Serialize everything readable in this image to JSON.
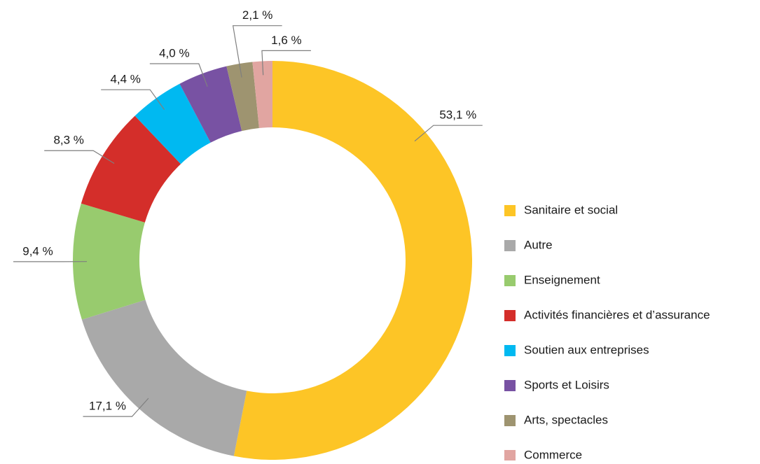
{
  "chart_data": {
    "type": "donut",
    "categories": [
      "Sanitaire et social",
      "Autre",
      "Enseignement",
      "Activités financières et d’assurance",
      "Soutien aux entreprises",
      "Sports et Loisirs",
      "Arts, spectacles",
      "Commerce"
    ],
    "values": [
      53.1,
      17.1,
      9.4,
      8.3,
      4.4,
      4.0,
      2.1,
      1.6
    ],
    "value_labels": [
      "53,1 %",
      "17,1 %",
      "9,4 %",
      "8,3 %",
      "4,4 %",
      "4,0 %",
      "2,1 %",
      "1,6 %"
    ],
    "colors": [
      "#fdc526",
      "#a9a9a9",
      "#98cb6e",
      "#d42e2a",
      "#00b9f1",
      "#7852a3",
      "#9e9470",
      "#e1a5a1"
    ],
    "legend": "right"
  }
}
